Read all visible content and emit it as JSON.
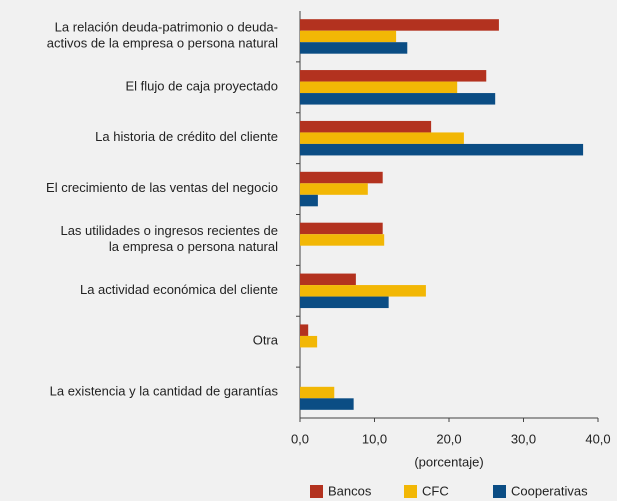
{
  "chart_data": {
    "type": "hbar",
    "categories": [
      "La relación deuda-patrimonio o deuda-\nactivos de la empresa o persona natural",
      "El flujo de caja proyectado",
      "La historia de crédito del cliente",
      "El crecimiento de las ventas del negocio",
      "Las utilidades o ingresos recientes de\nla empresa o persona natural",
      "La actividad económica del cliente",
      "Otra",
      "La existencia y la cantidad de garantías"
    ],
    "series": [
      {
        "name": "Bancos",
        "color": "#b3321f",
        "values": [
          26.7,
          25.0,
          17.6,
          11.1,
          11.1,
          7.5,
          1.1,
          null
        ]
      },
      {
        "name": "CFC",
        "color": "#f2b705",
        "values": [
          12.9,
          21.1,
          22.0,
          9.1,
          11.3,
          16.9,
          2.3,
          4.6
        ]
      },
      {
        "name": "Cooperativas",
        "color": "#0b4d84",
        "values": [
          14.4,
          26.2,
          38.0,
          2.4,
          null,
          11.9,
          null,
          7.2
        ]
      }
    ],
    "xlabel": "(porcentaje)",
    "xlim": [
      0,
      40
    ],
    "xticks": [
      {
        "value": 0,
        "label": "0,0"
      },
      {
        "value": 10,
        "label": "10,0"
      },
      {
        "value": 20,
        "label": "20,0"
      },
      {
        "value": 30,
        "label": "30,0"
      },
      {
        "value": 40,
        "label": "40,0"
      }
    ],
    "legend": "bottom"
  }
}
